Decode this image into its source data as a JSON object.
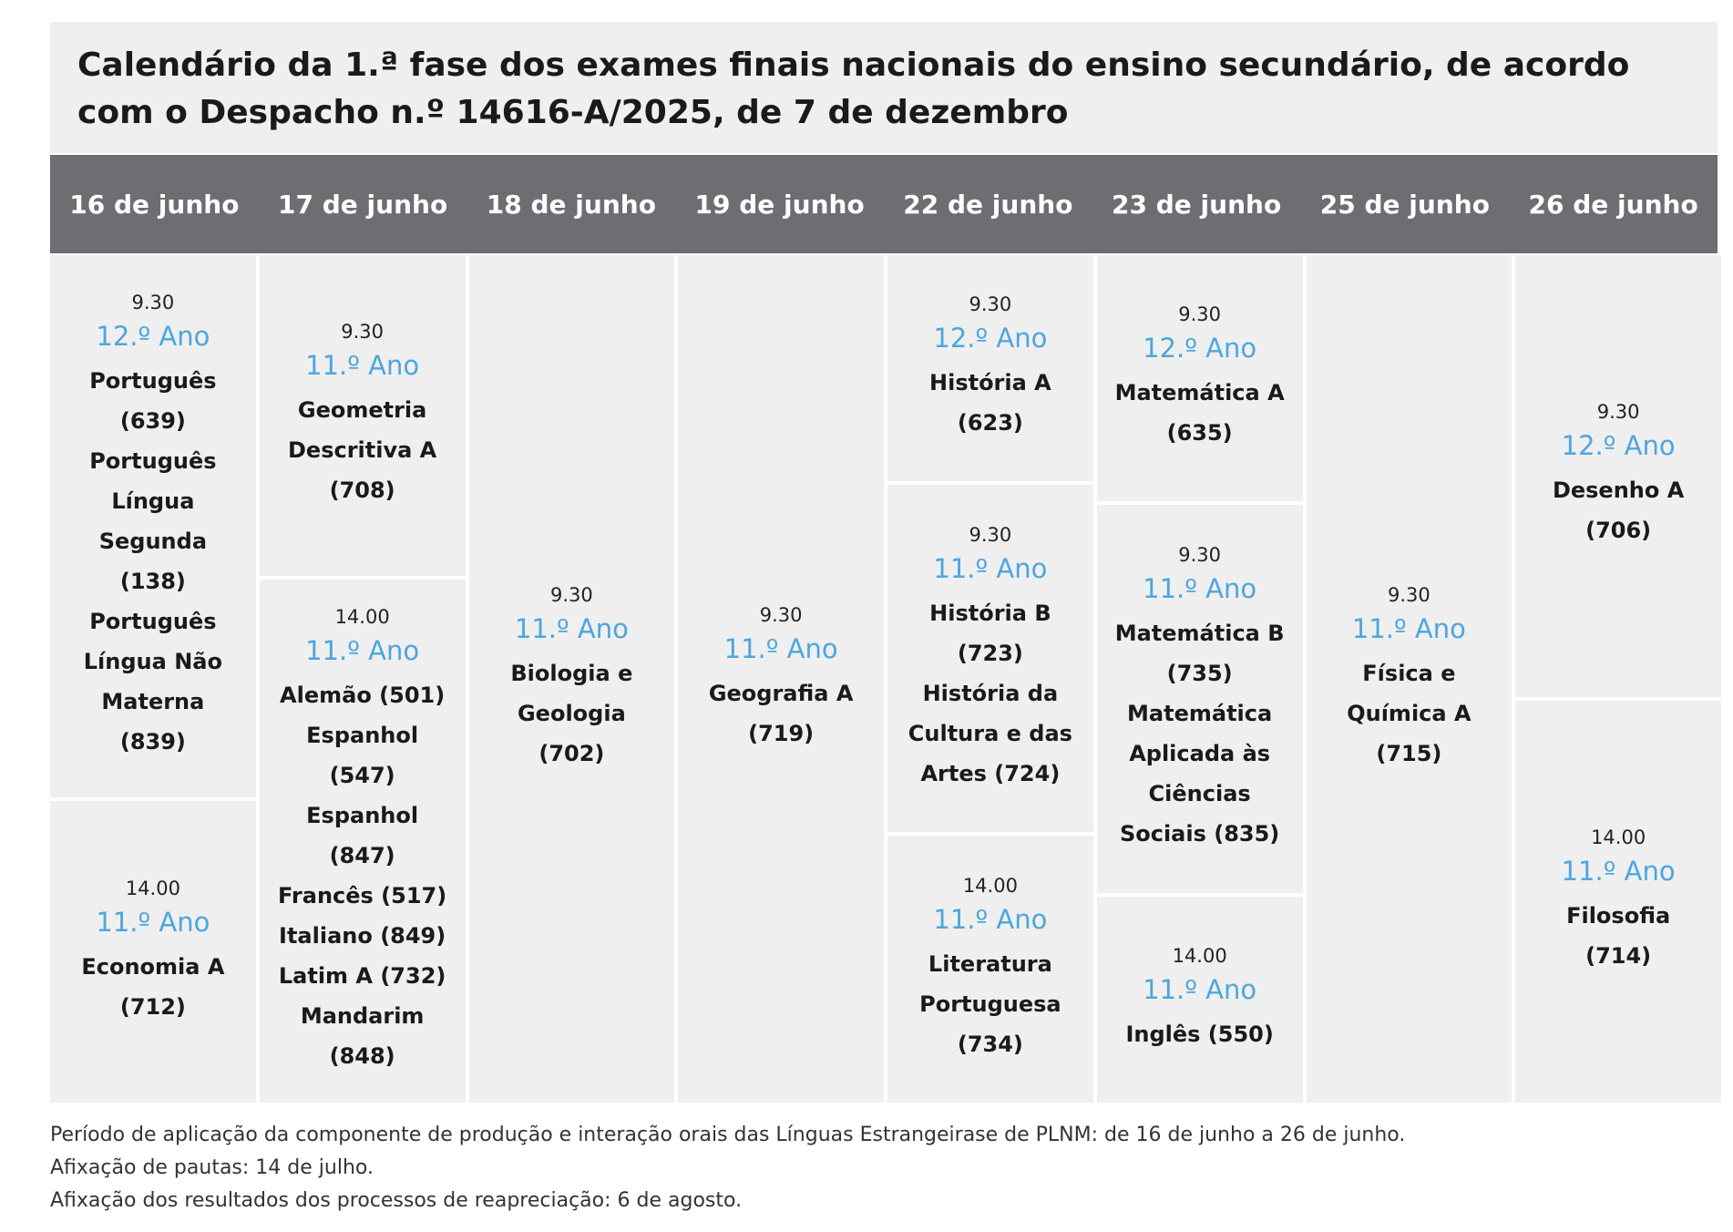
{
  "header": {
    "title": "Calendário da 1.ª fase dos exames finais nacionais do ensino secundário, de acordo com o Despacho n.º 14616-A/2025, de 7 de dezembro"
  },
  "columns": [
    {
      "date": "16 de junho",
      "sessions": [
        {
          "time": "9.30",
          "year": "12.º Ano",
          "exams": [
            "Português (639)",
            "Português Língua Segunda (138)",
            "Português Língua Não Materna (839)"
          ]
        },
        {
          "time": "14.00",
          "year": "11.º Ano",
          "exams": [
            "Economia A (712)"
          ]
        }
      ]
    },
    {
      "date": "17 de junho",
      "sessions": [
        {
          "time": "9.30",
          "year": "11.º Ano",
          "exams": [
            "Geometria Descritiva A (708)"
          ]
        },
        {
          "time": "14.00",
          "year": "11.º Ano",
          "exams": [
            "Alemão (501)",
            "Espanhol (547)",
            "Espanhol (847)",
            "Francês (517)",
            "Italiano (849)",
            "Latim A (732)",
            "Mandarim (848)"
          ]
        }
      ]
    },
    {
      "date": "18 de junho",
      "sessions": [
        {
          "time": "9.30",
          "year": "11.º Ano",
          "exams": [
            "Biologia e Geologia (702)"
          ]
        }
      ]
    },
    {
      "date": "19 de junho",
      "sessions": [
        {
          "time": "9.30",
          "year": "11.º Ano",
          "exams": [
            "Geografia A (719)"
          ]
        }
      ]
    },
    {
      "date": "22 de junho",
      "sessions": [
        {
          "time": "9.30",
          "year": "12.º Ano",
          "exams": [
            "História A (623)"
          ]
        },
        {
          "time": "9.30",
          "year": "11.º Ano",
          "exams": [
            "História B (723)",
            "História da Cultura e das Artes (724)"
          ]
        },
        {
          "time": "14.00",
          "year": "11.º Ano",
          "exams": [
            "Literatura Portuguesa (734)"
          ]
        }
      ]
    },
    {
      "date": "23 de junho",
      "sessions": [
        {
          "time": "9.30",
          "year": "12.º Ano",
          "exams": [
            "Matemática A (635)"
          ]
        },
        {
          "time": "9.30",
          "year": "11.º Ano",
          "exams": [
            "Matemática B (735)",
            "Matemática Aplicada às Ciências Sociais (835)"
          ]
        },
        {
          "time": "14.00",
          "year": "11.º Ano",
          "exams": [
            "Inglês (550)"
          ]
        }
      ]
    },
    {
      "date": "25 de junho",
      "sessions": [
        {
          "time": "9.30",
          "year": "11.º Ano",
          "exams": [
            "Física e Química A (715)"
          ]
        }
      ]
    },
    {
      "date": "26 de junho",
      "sessions": [
        {
          "time": "9.30",
          "year": "12.º Ano",
          "exams": [
            "Desenho A (706)"
          ]
        },
        {
          "time": "14.00",
          "year": "11.º Ano",
          "exams": [
            "Filosofia (714)"
          ]
        }
      ]
    }
  ],
  "footer": {
    "notes": [
      "Período de aplicação da componente de produção e interação orais das Línguas Estrangeirase de PLNM: de 16 de junho a 26 de junho.",
      "Afixação de pautas: 14 de julho.",
      "Afixação dos resultados dos processos de reapreciação: 6 de agosto."
    ]
  }
}
